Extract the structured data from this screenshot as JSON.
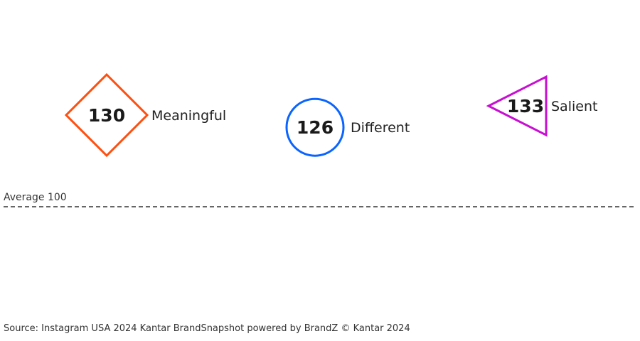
{
  "chart_data": {
    "type": "scatter",
    "reference": {
      "label": "Average 100",
      "value": 100
    },
    "series": [
      {
        "name": "Meaningful",
        "value": 130,
        "marker": "diamond",
        "color": "#FF4F0F"
      },
      {
        "name": "Different",
        "value": 126,
        "marker": "circle",
        "color": "#0A64FF"
      },
      {
        "name": "Salient",
        "value": 133,
        "marker": "triangle-left",
        "color": "#C80FD2"
      }
    ],
    "grid": false
  },
  "source": "Source: Instagram USA 2024 Kantar BrandSnapshot powered by BrandZ © Kantar 2024"
}
